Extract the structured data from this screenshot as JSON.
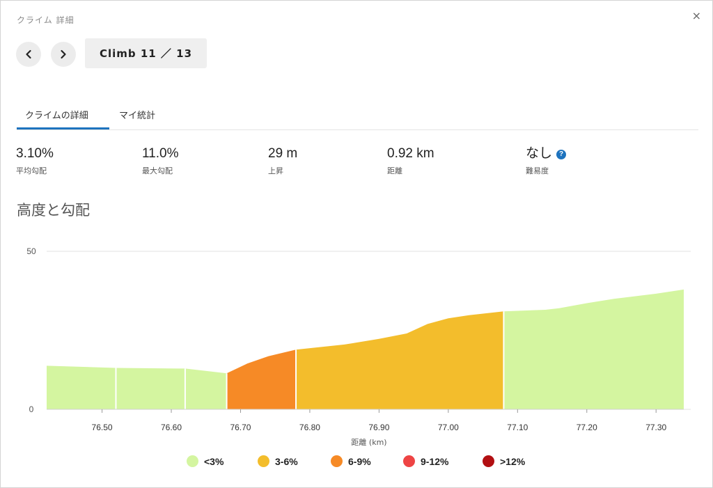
{
  "modal": {
    "title": "クライム 詳細",
    "close": "×"
  },
  "nav": {
    "climb_label": "Climb 11 ／ 13"
  },
  "tabs": [
    {
      "label": "クライムの詳細"
    },
    {
      "label": "マイ統計"
    }
  ],
  "stats": [
    {
      "value": "3.10%",
      "label": "平均勾配"
    },
    {
      "value": "11.0%",
      "label": "最大勾配"
    },
    {
      "value": "29 m",
      "label": "上昇"
    },
    {
      "value": "0.92 km",
      "label": "距離"
    },
    {
      "value": "なし",
      "label": "難易度"
    }
  ],
  "section_title": "高度と勾配",
  "colors": {
    "lt3": "#d4f5a0",
    "g3_6": "#f3bd2c",
    "g6_9": "#f68a26",
    "g9_12": "#ee4444",
    "gt12": "#b20f12",
    "accent": "#1e73be"
  },
  "chart_data": {
    "type": "area",
    "xlabel": "距離 (km)",
    "ylabel": "",
    "xlim": [
      76.42,
      77.34
    ],
    "ylim": [
      0,
      50
    ],
    "y_ticks": [
      0,
      50
    ],
    "x_ticks": [
      76.5,
      76.6,
      76.7,
      76.8,
      76.9,
      77.0,
      77.1,
      77.2,
      77.3
    ],
    "x_tick_labels": [
      "76.50",
      "76.60",
      "76.70",
      "76.80",
      "76.90",
      "77.00",
      "77.10",
      "77.20",
      "77.30"
    ],
    "grid": true,
    "segments": [
      {
        "grade": "<3%",
        "points": [
          [
            76.42,
            13.8
          ],
          [
            76.52,
            13.1
          ]
        ]
      },
      {
        "grade": "<3%",
        "points": [
          [
            76.52,
            13.1
          ],
          [
            76.62,
            12.9
          ]
        ]
      },
      {
        "grade": "<3%",
        "points": [
          [
            76.62,
            12.9
          ],
          [
            76.68,
            11.4
          ]
        ]
      },
      {
        "grade": "6-9%",
        "points": [
          [
            76.68,
            11.4
          ],
          [
            76.71,
            14.5
          ],
          [
            76.74,
            16.8
          ],
          [
            76.78,
            18.9
          ]
        ]
      },
      {
        "grade": "3-6%",
        "points": [
          [
            76.78,
            18.9
          ],
          [
            76.85,
            20.5
          ],
          [
            76.9,
            22.3
          ],
          [
            76.94,
            24.0
          ],
          [
            76.97,
            27.0
          ],
          [
            77.0,
            28.8
          ],
          [
            77.03,
            29.8
          ],
          [
            77.08,
            31.0
          ]
        ]
      },
      {
        "grade": "<3%",
        "points": [
          [
            77.08,
            31.0
          ],
          [
            77.14,
            31.5
          ],
          [
            77.16,
            32.0
          ],
          [
            77.2,
            33.6
          ],
          [
            77.24,
            35.0
          ],
          [
            77.3,
            36.6
          ],
          [
            77.34,
            37.9
          ]
        ]
      }
    ]
  },
  "legend": [
    {
      "label": "<3%",
      "color": "#d4f5a0"
    },
    {
      "label": "3-6%",
      "color": "#f3bd2c"
    },
    {
      "label": "6-9%",
      "color": "#f68a26"
    },
    {
      "label": "9-12%",
      "color": "#ee4444"
    },
    {
      "label": ">12%",
      "color": "#b20f12"
    }
  ]
}
